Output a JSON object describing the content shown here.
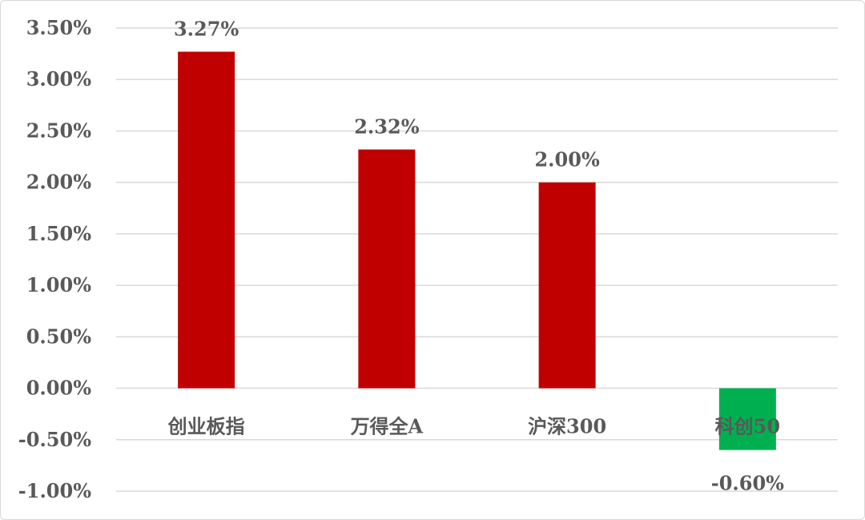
{
  "chart_data": {
    "type": "bar",
    "title": "",
    "xlabel": "",
    "ylabel": "",
    "categories": [
      "创业板指",
      "万得全A",
      "沪深300",
      "科创50"
    ],
    "values": [
      3.27,
      2.32,
      2.0,
      -0.6
    ],
    "data_labels": [
      "3.27%",
      "2.32%",
      "2.00%",
      "-0.60%"
    ],
    "ylim": [
      -1.0,
      3.5
    ],
    "y_ticks": [
      3.5,
      3.0,
      2.5,
      2.0,
      1.5,
      1.0,
      0.5,
      0.0,
      -0.5,
      -1.0
    ],
    "y_tick_labels": [
      "3.50%",
      "3.00%",
      "2.50%",
      "2.00%",
      "1.50%",
      "1.00%",
      "0.50%",
      "0.00%",
      "-0.50%",
      "-1.00%"
    ],
    "grid": true,
    "legend": "none",
    "colors": {
      "positive": "#c00000",
      "negative": "#00b050",
      "grid": "#d9d9d9",
      "text": "#595959"
    }
  }
}
